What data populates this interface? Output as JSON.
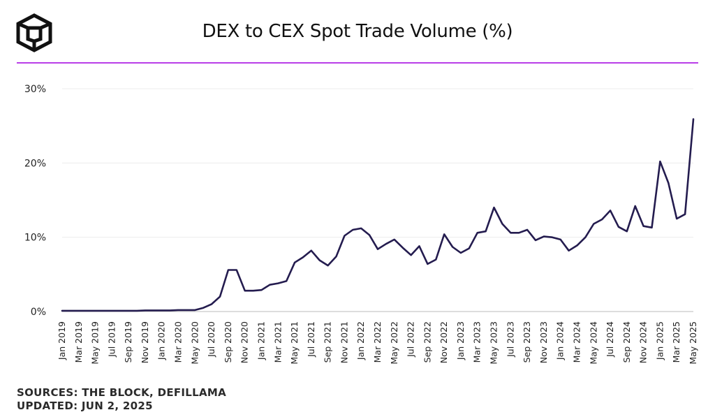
{
  "title": "DEX to CEX Spot Trade Volume (%)",
  "colors": {
    "accent_rule": "#b93ee8",
    "line": "#241c4f",
    "grid": "#ececec",
    "logo": "#111111"
  },
  "logo_icon": "cube-logo-icon",
  "footer": {
    "sources": "SOURCES: THE BLOCK, DEFILLAMA",
    "updated": "UPDATED: JUN 2, 2025"
  },
  "chart_data": {
    "type": "line",
    "title": "DEX to CEX Spot Trade Volume (%)",
    "xlabel": "",
    "ylabel": "",
    "ylim": [
      0,
      30
    ],
    "yticks": [
      "0%",
      "10%",
      "20%",
      "30%"
    ],
    "grid": true,
    "x": [
      "Jan 2019",
      "Feb 2019",
      "Mar 2019",
      "Apr 2019",
      "May 2019",
      "Jun 2019",
      "Jul 2019",
      "Aug 2019",
      "Sep 2019",
      "Oct 2019",
      "Nov 2019",
      "Dec 2019",
      "Jan 2020",
      "Feb 2020",
      "Mar 2020",
      "Apr 2020",
      "May 2020",
      "Jun 2020",
      "Jul 2020",
      "Aug 2020",
      "Sep 2020",
      "Oct 2020",
      "Nov 2020",
      "Dec 2020",
      "Jan 2021",
      "Feb 2021",
      "Mar 2021",
      "Apr 2021",
      "May 2021",
      "Jun 2021",
      "Jul 2021",
      "Aug 2021",
      "Sep 2021",
      "Oct 2021",
      "Nov 2021",
      "Dec 2021",
      "Jan 2022",
      "Feb 2022",
      "Mar 2022",
      "Apr 2022",
      "May 2022",
      "Jun 2022",
      "Jul 2022",
      "Aug 2022",
      "Sep 2022",
      "Oct 2022",
      "Nov 2022",
      "Dec 2022",
      "Jan 2023",
      "Feb 2023",
      "Mar 2023",
      "Apr 2023",
      "May 2023",
      "Jun 2023",
      "Jul 2023",
      "Aug 2023",
      "Sep 2023",
      "Oct 2023",
      "Nov 2023",
      "Dec 2023",
      "Jan 2024",
      "Feb 2024",
      "Mar 2024",
      "Apr 2024",
      "May 2024",
      "Jun 2024",
      "Jul 2024",
      "Aug 2024",
      "Sep 2024",
      "Oct 2024",
      "Nov 2024",
      "Dec 2024",
      "Jan 2025",
      "Feb 2025",
      "Mar 2025",
      "Apr 2025",
      "May 2025"
    ],
    "xtick_labels": [
      "Jan 2019",
      "Mar 2019",
      "May 2019",
      "Jul 2019",
      "Sep 2019",
      "Nov 2019",
      "Jan 2020",
      "Mar 2020",
      "May 2020",
      "Jul 2020",
      "Sep 2020",
      "Nov 2020",
      "Jan 2021",
      "Mar 2021",
      "May 2021",
      "Jul 2021",
      "Sep 2021",
      "Nov 2021",
      "Jan 2022",
      "Mar 2022",
      "May 2022",
      "Jul 2022",
      "Sep 2022",
      "Nov 2022",
      "Jan 2023",
      "Mar 2023",
      "May 2023",
      "Jul 2023",
      "Sep 2023",
      "Nov 2023",
      "Jan 2024",
      "Mar 2024",
      "May 2024",
      "Jul 2024",
      "Sep 2024",
      "Nov 2024",
      "Jan 2025",
      "Mar 2025",
      "May 2025"
    ],
    "series": [
      {
        "values": [
          0.1,
          0.1,
          0.1,
          0.1,
          0.1,
          0.1,
          0.1,
          0.1,
          0.1,
          0.1,
          0.15,
          0.15,
          0.15,
          0.15,
          0.2,
          0.2,
          0.2,
          0.5,
          1.0,
          2.0,
          5.6,
          5.6,
          2.8,
          2.8,
          2.9,
          3.6,
          3.8,
          4.1,
          6.6,
          7.3,
          8.2,
          6.9,
          6.2,
          7.4,
          10.2,
          11.0,
          11.2,
          10.3,
          8.4,
          9.1,
          9.7,
          8.6,
          7.6,
          8.8,
          6.4,
          7.0,
          10.4,
          8.7,
          7.9,
          8.5,
          10.6,
          10.8,
          14.0,
          11.8,
          10.6,
          10.6,
          11.0,
          9.6,
          10.1,
          10.0,
          9.7,
          8.2,
          8.9,
          10.0,
          11.8,
          12.4,
          13.6,
          11.4,
          10.8,
          14.2,
          11.5,
          11.3,
          20.2,
          17.3,
          12.5,
          13.1,
          25.9
        ]
      }
    ]
  }
}
